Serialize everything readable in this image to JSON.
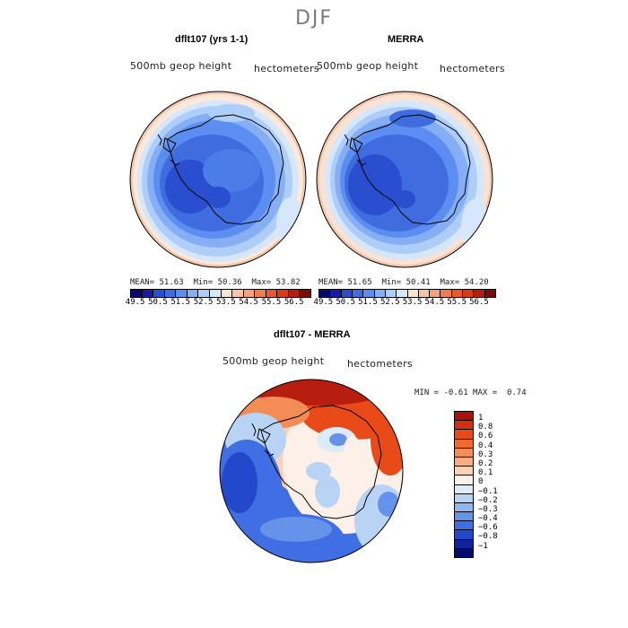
{
  "figure": {
    "season": "DJF"
  },
  "panels": {
    "left": {
      "title": "dflt107 (yrs 1-1)",
      "variable": "500mb geop height",
      "units": "hectometers",
      "mean_label": "MEAN=",
      "mean": "51.63",
      "min_label": "Min=",
      "min": "50.36",
      "max_label": "Max=",
      "max": "53.82"
    },
    "right": {
      "title": "MERRA",
      "variable": "500mb geop height",
      "units": "hectometers",
      "mean_label": "MEAN=",
      "mean": "51.65",
      "min_label": "Min=",
      "min": "50.41",
      "max_label": "Max=",
      "max": "54.20"
    },
    "diff": {
      "title": "dflt107 - MERRA",
      "variable": "500mb geop height",
      "units": "hectometers",
      "min_label": "MIN =",
      "min": "-0.61",
      "max_label": "MAX =",
      "max": "0.74"
    }
  },
  "colorbar_top": {
    "ticks": [
      "49.5",
      "50.5",
      "51.5",
      "52.5",
      "53.5",
      "54.5",
      "55.5",
      "56.5"
    ],
    "colors": [
      "#08086b",
      "#1a1aa6",
      "#2a4ed0",
      "#3f6de0",
      "#5b8ef0",
      "#85aef5",
      "#aecdf8",
      "#d6e6fb",
      "#fbe3d4",
      "#f8c4a8",
      "#f3a37c",
      "#ee7d52",
      "#e85a2c",
      "#d93a18",
      "#b81e0f",
      "#7d0b08"
    ]
  },
  "colorbar_diff": {
    "labels": [
      "1",
      "0.8",
      "0.6",
      "0.4",
      "0.3",
      "0.2",
      "0.1",
      "0",
      "-0.1",
      "-0.2",
      "-0.3",
      "-0.4",
      "-0.6",
      "-0.8",
      "-1"
    ],
    "colors": [
      "#a8140c",
      "#d3300f",
      "#e84a18",
      "#f06a30",
      "#f48c58",
      "#f7ae84",
      "#fad2b8",
      "#fdf0e8",
      "#ddeaf8",
      "#b9d3f5",
      "#8fb6f0",
      "#6593ea",
      "#3f6fe2",
      "#2448cc",
      "#12229c",
      "#060a6a"
    ]
  },
  "map": {
    "projection": "south polar stereographic",
    "coastline": "Antarctica"
  }
}
